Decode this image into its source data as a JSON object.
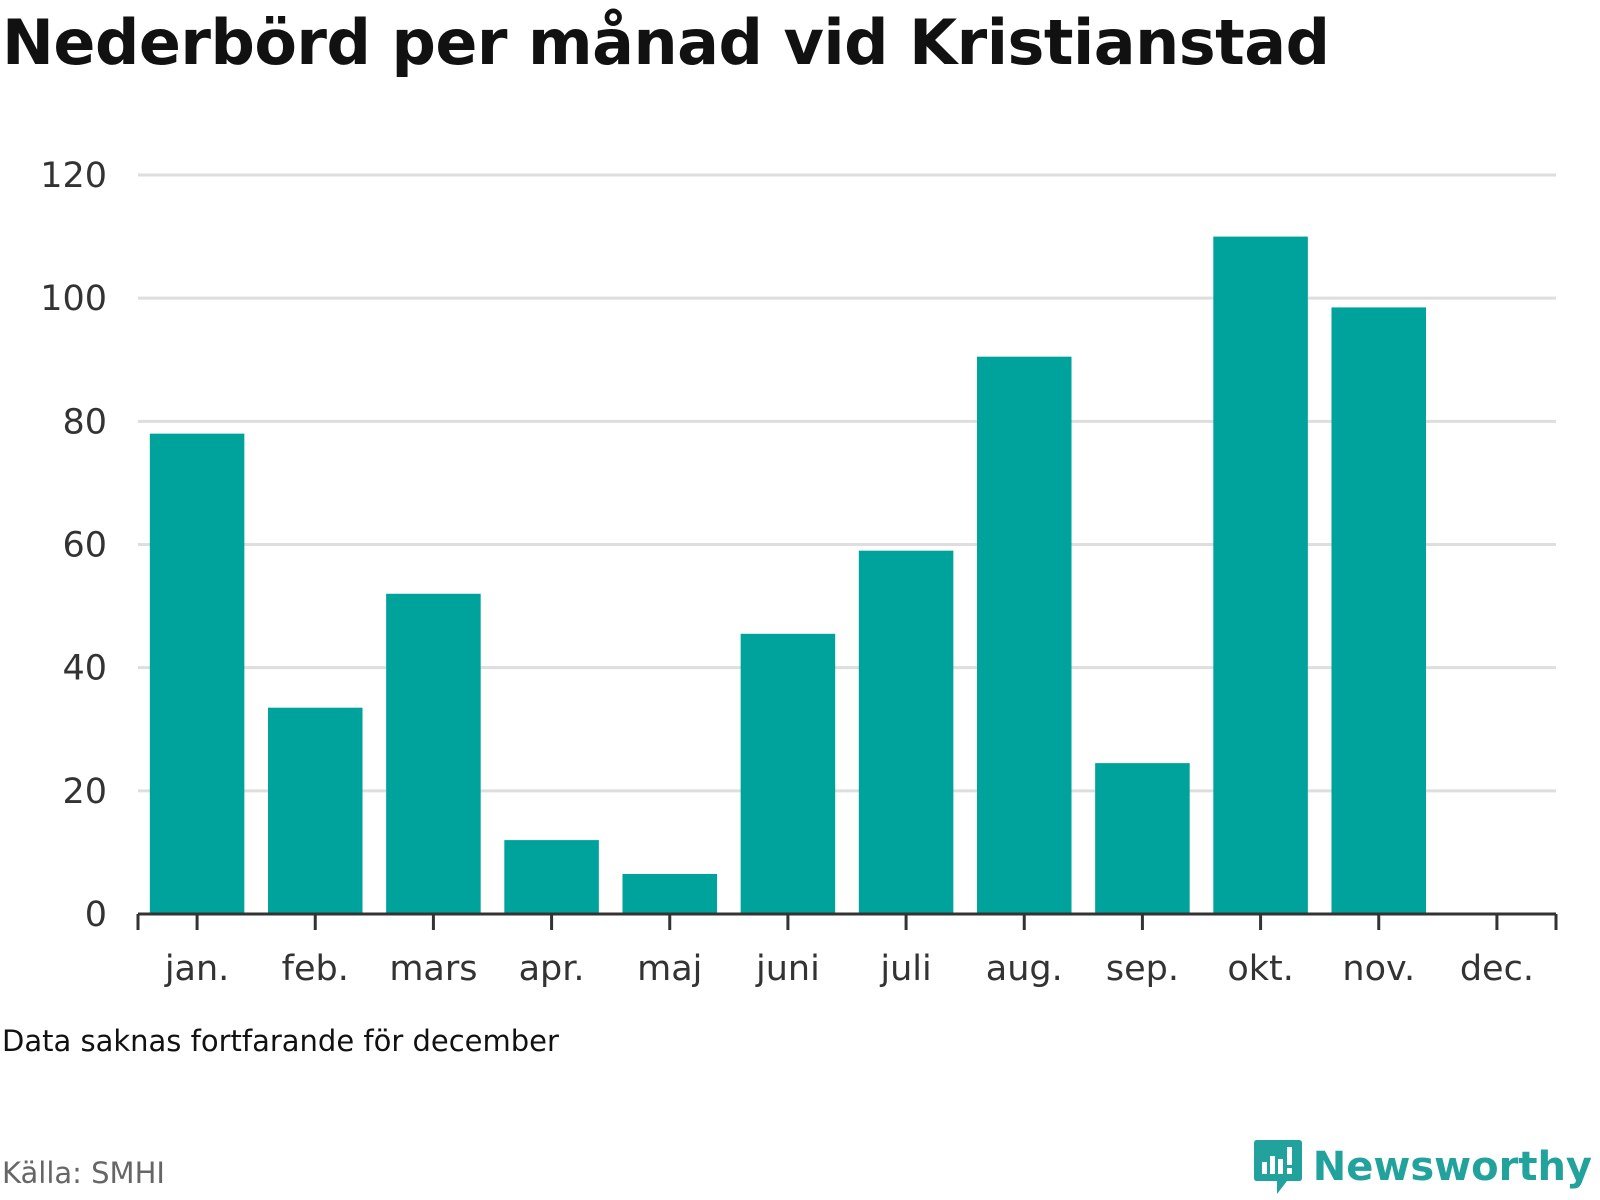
{
  "title": "Nederbörd per månad vid Kristianstad",
  "note": "Data saknas fortfarande för december",
  "source": "Källa: SMHI",
  "brand": {
    "name": "Newsworthy",
    "icon": "newsworthy-logo-icon"
  },
  "colors": {
    "bar": "#00a39b",
    "grid": "#dedede",
    "axis": "#333333",
    "text": "#333333"
  },
  "chart_data": {
    "type": "bar",
    "categories": [
      "jan.",
      "feb.",
      "mars",
      "apr.",
      "maj",
      "juni",
      "juli",
      "aug.",
      "sep.",
      "okt.",
      "nov.",
      "dec."
    ],
    "values": [
      78,
      33.5,
      52,
      12,
      6.5,
      45.5,
      59,
      90.5,
      24.5,
      110,
      98.5,
      null
    ],
    "yticks": [
      0,
      20,
      40,
      60,
      80,
      100,
      120
    ],
    "ylim": [
      0,
      120
    ],
    "grid": true,
    "legend": "none"
  }
}
